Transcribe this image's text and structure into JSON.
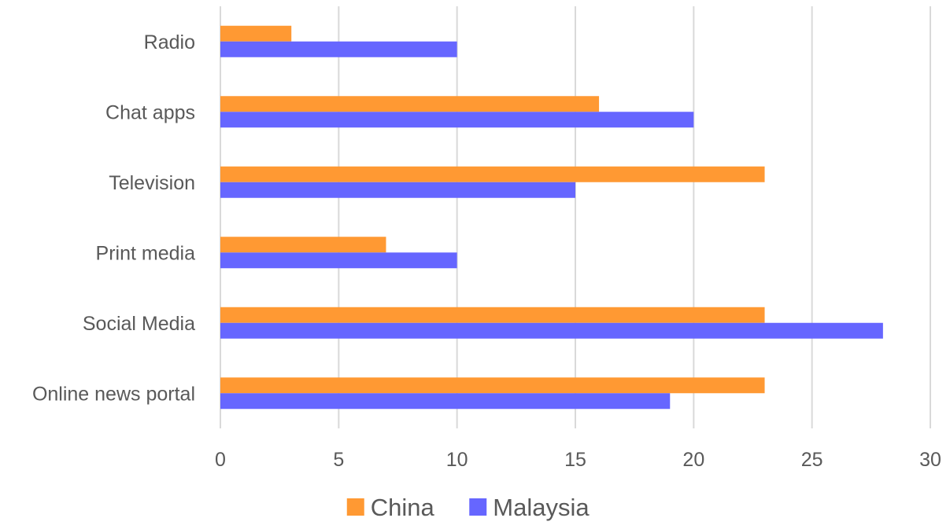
{
  "chart_data": {
    "type": "bar",
    "orientation": "horizontal",
    "categories": [
      "Online news portal",
      "Social Media",
      "Print media",
      "Television",
      "Chat apps",
      "Radio"
    ],
    "series": [
      {
        "name": "China",
        "values": [
          23,
          23,
          7,
          23,
          16,
          3
        ],
        "color": "#FF9933"
      },
      {
        "name": "Malaysia",
        "values": [
          19,
          28,
          10,
          15,
          20,
          10
        ],
        "color": "#6666FF"
      }
    ],
    "xlim": [
      0,
      30
    ],
    "xticks": [
      0,
      5,
      10,
      15,
      20,
      25,
      30
    ],
    "title": "",
    "xlabel": "",
    "ylabel": "",
    "grid": "vertical",
    "legend_position": "bottom"
  }
}
